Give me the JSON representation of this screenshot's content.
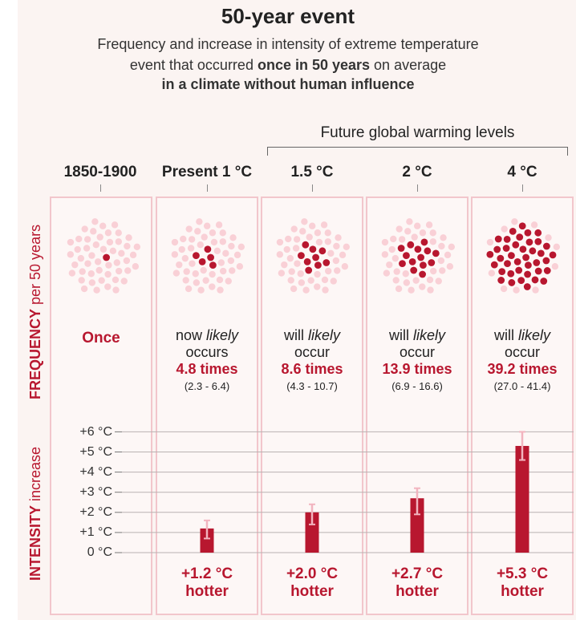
{
  "title": "50-year event",
  "subtitle": {
    "line1": "Frequency and increase in intensity of extreme temperature",
    "line2_pre": "event that occurred ",
    "line2_bold": "once in 50 years",
    "line2_post": " on average",
    "line3": "in a climate without human influence"
  },
  "future_label": "Future global warming levels",
  "side_labels": {
    "frequency_bold": "FREQUENCY",
    "frequency_rest": " per 50 years",
    "intensity_bold": "INTENSITY",
    "intensity_rest": " increase"
  },
  "columns": [
    {
      "header": "1850-1900",
      "once_label": "Once"
    },
    {
      "header": "Present 1 °C",
      "pre": "now ",
      "likely": "likely",
      "verb": "occurs",
      "times": "4.8 times",
      "range": "(2.3 - 6.4)",
      "hotter_value": "+1.2 °C",
      "hotter_word": "hotter"
    },
    {
      "header": "1.5 °C",
      "pre": "will ",
      "likely": "likely",
      "verb": "occur",
      "times": "8.6 times",
      "range": "(4.3 - 10.7)",
      "hotter_value": "+2.0 °C",
      "hotter_word": "hotter"
    },
    {
      "header": "2 °C",
      "pre": "will ",
      "likely": "likely",
      "verb": "occur",
      "times": "13.9 times",
      "range": "(6.9 - 16.6)",
      "hotter_value": "+2.7 °C",
      "hotter_word": "hotter"
    },
    {
      "header": "4 °C",
      "pre": "will ",
      "likely": "likely",
      "verb": "occur",
      "times": "39.2 times",
      "range": "(27.0 - 41.4)",
      "hotter_value": "+5.3 °C",
      "hotter_word": "hotter"
    }
  ],
  "colors": {
    "accent": "#b8172f",
    "dot_light": "#f9d0d6",
    "error_bar": "#f2b4bf",
    "panel_border": "#f2c6cc"
  },
  "chart_data": {
    "type": "bar",
    "categories": [
      "Present 1 °C",
      "1.5 °C",
      "2 °C",
      "4 °C"
    ],
    "values": [
      1.2,
      2.0,
      2.7,
      5.3
    ],
    "error_low": [
      0.7,
      1.4,
      1.9,
      4.6
    ],
    "error_high": [
      1.6,
      2.4,
      3.2,
      6.0
    ],
    "frequency_dots_dark": [
      1,
      4.8,
      8.6,
      13.9,
      39.2
    ],
    "frequency_dots_total": 50,
    "yticks": [
      "+6 °C",
      "+5 °C",
      "+4 °C",
      "+3 °C",
      "+2 °C",
      "+1 °C",
      "0 °C"
    ],
    "ytick_values": [
      6,
      5,
      4,
      3,
      2,
      1,
      0
    ],
    "ylim": [
      0,
      6
    ],
    "ylabel": "INTENSITY increase"
  }
}
